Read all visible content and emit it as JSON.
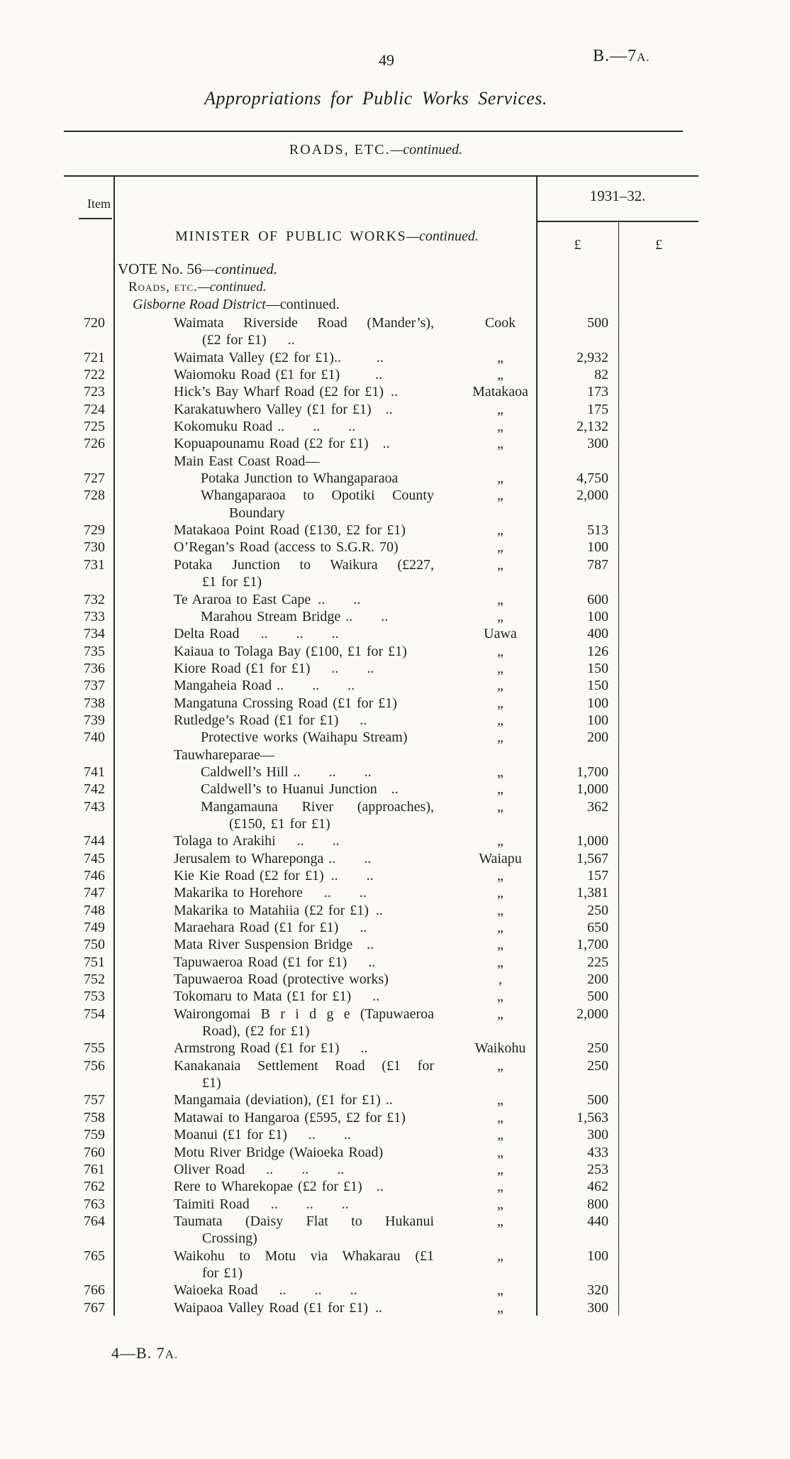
{
  "page": {
    "page_number": "49",
    "ref_main": "B.—7",
    "ref_suffix": "A.",
    "title": "Appropriations for Public Works Services.",
    "section_caps": "ROADS, ETC.",
    "section_cont": "—continued.",
    "footer_main": "4—B. 7",
    "footer_suffix": "A."
  },
  "table": {
    "item_header": "Item",
    "year_header": "1931–32.",
    "col1_symbol": "£",
    "col2_symbol": "£",
    "minister_caps": "MINISTER OF PUBLIC WORKS",
    "minister_cont": "—continued.",
    "vote_main": "VOTE No. 56",
    "vote_cont": "—continued.",
    "subsection_caps": "Roads, etc.",
    "subsection_cont": "—continued.",
    "district_italic": "Gisborne Road District",
    "district_cont": "—continued.",
    "rows": [
      {
        "item": "720",
        "justify": true,
        "lines": [
          "Waimata Riverside Road (Mander’s),",
          "(£2 for £1)  .."
        ],
        "loc": "Cook",
        "amt": "500"
      },
      {
        "item": "721",
        "lines": [
          "Waimata Valley (£2 for £1)..   .."
        ],
        "loc": "„",
        "amt": "2,932"
      },
      {
        "item": "722",
        "lines": [
          "Waiomoku Road (£1 for £1)   .."
        ],
        "loc": "„",
        "amt": "82"
      },
      {
        "item": "723",
        "lines": [
          "Hick’s Bay Wharf Road (£2 for £1) .."
        ],
        "loc": "Matakaoa",
        "amt": "173"
      },
      {
        "item": "724",
        "lines": [
          "Karakatuwhero Valley (£1 for £1)  .."
        ],
        "loc": "„",
        "amt": "175"
      },
      {
        "item": "725",
        "lines": [
          "Kokomuku Road ..  ..  .."
        ],
        "loc": "„",
        "amt": "2,132"
      },
      {
        "item": "726",
        "lines": [
          "Kopuapounamu Road (£2 for £1)  .."
        ],
        "loc": "„",
        "amt": "300"
      },
      {
        "group": true,
        "lines": [
          "Main East Coast Road—"
        ]
      },
      {
        "item": "727",
        "indent": 1,
        "lines": [
          "Potaka Junction to Whangaparaoa"
        ],
        "loc": "„",
        "amt": "4,750"
      },
      {
        "item": "728",
        "indent": 1,
        "justify": true,
        "lines": [
          "Whangaparaoa to Opotiki County",
          "Boundary"
        ],
        "loc": "„",
        "amt": "2,000"
      },
      {
        "item": "729",
        "lines": [
          "Matakaoa Point Road (£130, £2 for £1)"
        ],
        "loc": "„",
        "amt": "513"
      },
      {
        "item": "730",
        "lines": [
          "O’Regan’s Road (access to S.G.R. 70)"
        ],
        "loc": "„",
        "amt": "100"
      },
      {
        "item": "731",
        "justify": true,
        "lines": [
          "Potaka Junction to Waikura (£227,",
          "£1 for £1)"
        ],
        "loc": "„",
        "amt": "787"
      },
      {
        "item": "732",
        "lines": [
          "Te Araroa to East Cape ..  .."
        ],
        "loc": "„",
        "amt": "600"
      },
      {
        "item": "733",
        "indent": 1,
        "lines": [
          "Marahou Stream Bridge ..  .."
        ],
        "loc": "„",
        "amt": "100"
      },
      {
        "item": "734",
        "lines": [
          "Delta Road  ..  ..  .."
        ],
        "loc": "Uawa",
        "amt": "400"
      },
      {
        "item": "735",
        "lines": [
          "Kaiaua to Tolaga Bay (£100, £1 for £1)"
        ],
        "loc": "„",
        "amt": "126"
      },
      {
        "item": "736",
        "lines": [
          "Kiore Road (£1 for £1)  ..  .."
        ],
        "loc": "„",
        "amt": "150"
      },
      {
        "item": "737",
        "lines": [
          "Mangaheia Road ..  ..  .."
        ],
        "loc": "„",
        "amt": "150"
      },
      {
        "item": "738",
        "lines": [
          "Mangatuna Crossing Road (£1 for £1)"
        ],
        "loc": "„",
        "amt": "100"
      },
      {
        "item": "739",
        "lines": [
          "Rutledge’s Road (£1 for £1)  .."
        ],
        "loc": "„",
        "amt": "100"
      },
      {
        "item": "740",
        "indent": 1,
        "lines": [
          "Protective works (Waihapu Stream)"
        ],
        "loc": "„",
        "amt": "200"
      },
      {
        "group": true,
        "lines": [
          "Tauwhareparae—"
        ]
      },
      {
        "item": "741",
        "indent": 1,
        "lines": [
          "Caldwell’s Hill ..  ..  .."
        ],
        "loc": "„",
        "amt": "1,700"
      },
      {
        "item": "742",
        "indent": 1,
        "lines": [
          "Caldwell’s to Huanui Junction  .."
        ],
        "loc": "„",
        "amt": "1,000"
      },
      {
        "item": "743",
        "indent": 1,
        "justify": true,
        "lines": [
          "Mangamauna River (approaches),",
          "(£150, £1 for £1)"
        ],
        "loc": "„",
        "amt": "362"
      },
      {
        "item": "744",
        "lines": [
          "Tolaga to Arakihi  ..  .."
        ],
        "loc": "„",
        "amt": "1,000"
      },
      {
        "item": "745",
        "lines": [
          "Jerusalem to Whareponga ..  .."
        ],
        "loc": "Waiapu",
        "amt": "1,567"
      },
      {
        "item": "746",
        "lines": [
          "Kie Kie Road (£2 for £1) ..  .."
        ],
        "loc": "„",
        "amt": "157"
      },
      {
        "item": "747",
        "lines": [
          "Makarika to Horehore  ..  .."
        ],
        "loc": "„",
        "amt": "1,381"
      },
      {
        "item": "748",
        "lines": [
          "Makarika to Matahiia (£2 for £1) .."
        ],
        "loc": "„",
        "amt": "250"
      },
      {
        "item": "749",
        "lines": [
          "Maraehara Road (£1 for £1)  .."
        ],
        "loc": "„",
        "amt": "650"
      },
      {
        "item": "750",
        "lines": [
          "Mata River Suspension Bridge .."
        ],
        "loc": "„",
        "amt": "1,700"
      },
      {
        "item": "751",
        "lines": [
          "Tapuwaeroa Road (£1 for £1)  .."
        ],
        "loc": "„",
        "amt": "225"
      },
      {
        "item": "752",
        "lines": [
          "Tapuwaeroa Road (protective works)"
        ],
        "loc": ",",
        "amt": "200"
      },
      {
        "item": "753",
        "lines": [
          "Tokomaru to Mata (£1 for £1)  .."
        ],
        "loc": "„",
        "amt": "500"
      },
      {
        "item": "754",
        "justify": true,
        "lines": [
          "Wairongomai B r i d g e (Tapuwaeroa",
          "Road), (£2 for £1)"
        ],
        "loc": "„",
        "amt": "2,000"
      },
      {
        "item": "755",
        "lines": [
          "Armstrong Road (£1 for £1)  .."
        ],
        "loc": "Waikohu",
        "amt": "250"
      },
      {
        "item": "756",
        "justify": true,
        "lines": [
          "Kanakanaia Settlement Road (£1 for",
          "£1)"
        ],
        "loc": "„",
        "amt": "250"
      },
      {
        "item": "757",
        "lines": [
          "Mangamaia (deviation), (£1 for £1) .."
        ],
        "loc": "„",
        "amt": "500"
      },
      {
        "item": "758",
        "lines": [
          "Matawai to Hangaroa (£595, £2 for £1)"
        ],
        "loc": "„",
        "amt": "1,563"
      },
      {
        "item": "759",
        "lines": [
          "Moanui (£1 for £1)  ..  .."
        ],
        "loc": "„",
        "amt": "300"
      },
      {
        "item": "760",
        "lines": [
          "Motu River Bridge (Waioeka Road)"
        ],
        "loc": "„",
        "amt": "433"
      },
      {
        "item": "761",
        "lines": [
          "Oliver Road  ..  ..  .."
        ],
        "loc": "„",
        "amt": "253"
      },
      {
        "item": "762",
        "lines": [
          "Rere to Wharekopae (£2 for £1) .."
        ],
        "loc": "„",
        "amt": "462"
      },
      {
        "item": "763",
        "lines": [
          "Taimiti Road  ..  ..  .."
        ],
        "loc": "„",
        "amt": "800"
      },
      {
        "item": "764",
        "justify": true,
        "lines": [
          "Taumata (Daisy Flat to Hukanui",
          "Crossing)"
        ],
        "loc": "„",
        "amt": "440"
      },
      {
        "item": "765",
        "justify": true,
        "lines": [
          "Waikohu to Motu via Whakarau (£1",
          "for £1)"
        ],
        "loc": "„",
        "amt": "100"
      },
      {
        "item": "766",
        "lines": [
          "Waioeka Road  ..  ..  .."
        ],
        "loc": "„",
        "amt": "320"
      },
      {
        "item": "767",
        "lines": [
          "Waipaoa Valley Road (£1 for £1) .."
        ],
        "loc": "„",
        "amt": "300"
      }
    ]
  }
}
